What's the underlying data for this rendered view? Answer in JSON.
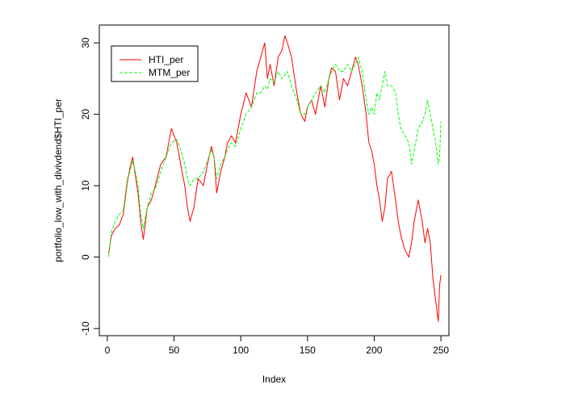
{
  "chart_data": {
    "type": "line",
    "title": "",
    "xlabel": "Index",
    "ylabel": "portfolio_low_with_divivdend$HTI_per",
    "xlim": [
      -6,
      256
    ],
    "ylim": [
      -11,
      32.5
    ],
    "x_ticks": [
      0,
      50,
      100,
      150,
      200,
      250
    ],
    "y_ticks": [
      -10,
      0,
      10,
      20,
      30
    ],
    "grid": false,
    "legend_position": "top-left",
    "series": [
      {
        "name": "HTI_per",
        "color": "#ff0000",
        "dash": "solid",
        "x": [
          1,
          3,
          6,
          9,
          12,
          15,
          17,
          19,
          21,
          23,
          25,
          27,
          30,
          33,
          36,
          40,
          44,
          48,
          52,
          55,
          58,
          60,
          62,
          65,
          68,
          72,
          75,
          78,
          80,
          82,
          85,
          88,
          90,
          93,
          96,
          100,
          104,
          108,
          112,
          115,
          118,
          120,
          122,
          125,
          128,
          131,
          133,
          135,
          138,
          142,
          145,
          148,
          150,
          153,
          156,
          160,
          163,
          166,
          168,
          171,
          174,
          177,
          180,
          183,
          186,
          188,
          191,
          194,
          196,
          198,
          200,
          202,
          204,
          206,
          208,
          210,
          213,
          216,
          218,
          220,
          223,
          226,
          228,
          230,
          233,
          236,
          238,
          240,
          242,
          244,
          246,
          248,
          249,
          250
        ],
        "y": [
          0.5,
          3,
          4,
          4.5,
          6,
          10.5,
          12.5,
          14,
          11.5,
          9,
          5,
          2.5,
          7,
          8,
          10,
          13,
          14,
          18,
          16,
          13,
          10,
          7,
          5,
          7,
          11,
          10,
          13,
          15.5,
          14,
          9,
          12,
          14,
          16,
          17,
          16,
          20,
          23,
          21,
          26,
          28,
          30,
          25,
          27,
          24,
          28,
          29,
          31,
          30,
          28,
          23,
          20,
          19,
          21,
          22,
          20,
          24,
          21,
          25,
          26.5,
          26,
          22,
          25,
          24,
          26,
          28,
          27,
          24,
          20,
          16,
          15,
          13,
          10,
          8,
          5,
          7,
          11,
          12,
          8,
          5,
          3,
          1,
          0,
          2,
          5,
          8,
          5,
          2,
          4,
          2,
          -3,
          -6,
          -9,
          -4,
          -2.5
        ]
      },
      {
        "name": "MTM_per",
        "color": "#00ff00",
        "dash": "dashed",
        "x": [
          1,
          3,
          6,
          9,
          12,
          15,
          17,
          19,
          21,
          23,
          25,
          27,
          30,
          33,
          36,
          40,
          44,
          48,
          52,
          55,
          58,
          60,
          62,
          65,
          68,
          72,
          75,
          78,
          80,
          82,
          85,
          88,
          90,
          93,
          96,
          100,
          104,
          108,
          112,
          115,
          118,
          120,
          122,
          125,
          128,
          131,
          133,
          135,
          138,
          142,
          145,
          148,
          150,
          153,
          156,
          160,
          163,
          166,
          168,
          171,
          174,
          177,
          180,
          183,
          186,
          188,
          191,
          194,
          196,
          198,
          200,
          202,
          204,
          206,
          208,
          210,
          213,
          216,
          218,
          220,
          223,
          226,
          228,
          230,
          233,
          236,
          238,
          240,
          242,
          244,
          246,
          248,
          249,
          250
        ],
        "y": [
          0,
          3.5,
          5,
          6,
          6.5,
          11,
          12,
          13.5,
          12,
          10,
          6,
          4,
          7,
          9,
          9.5,
          12,
          14,
          16,
          16.5,
          15,
          13,
          11,
          10,
          11,
          11,
          12,
          13.5,
          15,
          14,
          11,
          13,
          14,
          15,
          16,
          15.5,
          18,
          20,
          21,
          23,
          23,
          24,
          23.5,
          25,
          24.5,
          26,
          25,
          25.5,
          26,
          24,
          22,
          20,
          20,
          21,
          22,
          23,
          24,
          23,
          25,
          26,
          27,
          26,
          26,
          27,
          26,
          27,
          28,
          26,
          22,
          20,
          21,
          20,
          23,
          22,
          24,
          26,
          24,
          24,
          23,
          20,
          18,
          17,
          16,
          13,
          15,
          18,
          19,
          20,
          22,
          20,
          18,
          16,
          13,
          14,
          19
        ]
      }
    ]
  }
}
